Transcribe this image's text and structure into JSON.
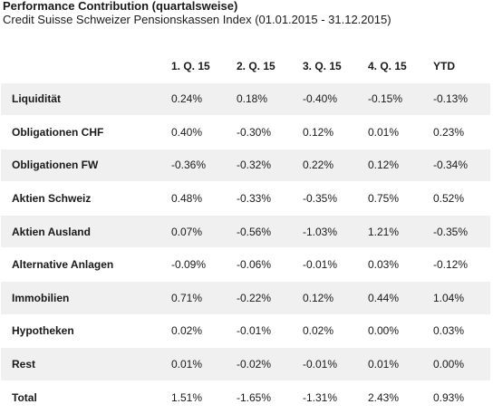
{
  "header": {
    "title": "Performance Contribution (quartalsweise)",
    "subtitle": "Credit Suisse Schweizer Pensionskassen Index (01.01.2015 - 31.12.2015)"
  },
  "table": {
    "columns": [
      "",
      "1. Q. 15",
      "2. Q. 15",
      "3. Q. 15",
      "4. Q. 15",
      "YTD"
    ],
    "rows": [
      {
        "label": "Liquidität",
        "values": [
          "0.24%",
          "0.18%",
          "-0.40%",
          "-0.15%",
          "-0.13%"
        ]
      },
      {
        "label": "Obligationen CHF",
        "values": [
          "0.40%",
          "-0.30%",
          "0.12%",
          "0.01%",
          "0.23%"
        ]
      },
      {
        "label": "Obligationen FW",
        "values": [
          "-0.36%",
          "-0.32%",
          "0.22%",
          "0.12%",
          "-0.34%"
        ]
      },
      {
        "label": "Aktien Schweiz",
        "values": [
          "0.48%",
          "-0.33%",
          "-0.35%",
          "0.75%",
          "0.52%"
        ]
      },
      {
        "label": "Aktien Ausland",
        "values": [
          "0.07%",
          "-0.56%",
          "-1.03%",
          "1.21%",
          "-0.35%"
        ]
      },
      {
        "label": "Alternative Anlagen",
        "values": [
          "-0.09%",
          "-0.06%",
          "-0.01%",
          "0.03%",
          "-0.12%"
        ]
      },
      {
        "label": "Immobilien",
        "values": [
          "0.71%",
          "-0.22%",
          "0.12%",
          "0.44%",
          "1.04%"
        ]
      },
      {
        "label": "Hypotheken",
        "values": [
          "0.02%",
          "-0.01%",
          "0.02%",
          "0.00%",
          "0.03%"
        ]
      },
      {
        "label": "Rest",
        "values": [
          "0.01%",
          "-0.02%",
          "-0.01%",
          "0.01%",
          "0.00%"
        ]
      },
      {
        "label": "Total",
        "values": [
          "1.51%",
          "-1.65%",
          "-1.31%",
          "2.43%",
          "0.93%"
        ]
      }
    ]
  },
  "colors": {
    "stripe": "#f0f0f0",
    "background": "#ffffff",
    "text": "#1a1a1a"
  }
}
